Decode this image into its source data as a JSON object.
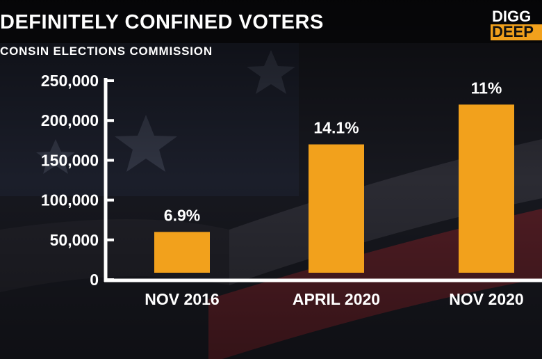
{
  "header": {
    "title": "DEFINITELY CONFINED VOTERS",
    "subtitle": "CONSIN ELECTIONS COMMISSION"
  },
  "logo": {
    "line1": "DIGG",
    "line2": "DEEP",
    "accent_color": "#f2a11c"
  },
  "colors": {
    "bar": "#f2a11c",
    "axis": "#ffffff",
    "text": "#ffffff",
    "background_dark": "#15161c",
    "background_stripe": "#5a1e26"
  },
  "chart_data": {
    "type": "bar",
    "categories": [
      "NOV 2016",
      "APRIL 2020",
      "NOV 2020"
    ],
    "values": [
      60000,
      170000,
      220000
    ],
    "data_labels": [
      "6.9%",
      "14.1%",
      "11%"
    ],
    "ylim": [
      0,
      250000
    ],
    "yticks": [
      0,
      50000,
      100000,
      150000,
      200000,
      250000
    ],
    "ytick_labels": [
      "0",
      "50,000",
      "100,000",
      "150,000",
      "200,000",
      "250,000"
    ],
    "grid": false,
    "title": "DEFINITELY CONFINED VOTERS"
  }
}
